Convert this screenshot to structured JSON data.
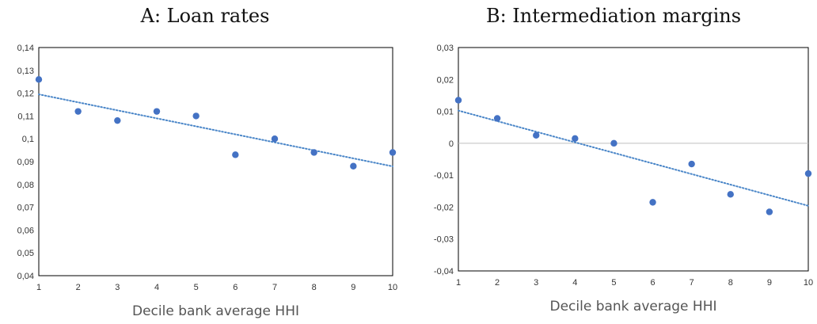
{
  "chart_data": [
    {
      "type": "scatter",
      "title": "A: Loan rates",
      "xlabel": "Decile bank average HHI",
      "ylabel": "",
      "x": [
        1,
        2,
        3,
        4,
        5,
        6,
        7,
        8,
        9,
        10
      ],
      "xticks": [
        "1",
        "2",
        "3",
        "4",
        "5",
        "6",
        "7",
        "8",
        "9",
        "10"
      ],
      "xlim": [
        1,
        10
      ],
      "ylim": [
        0.04,
        0.14
      ],
      "yticks": [
        0.04,
        0.05,
        0.06,
        0.07,
        0.08,
        0.09,
        0.1,
        0.11,
        0.12,
        0.13,
        0.14
      ],
      "ytick_labels": [
        "0,04",
        "0,05",
        "0,06",
        "0,07",
        "0,08",
        "0,09",
        "0,1",
        "0,11",
        "0,12",
        "0,13",
        "0,14"
      ],
      "series": [
        {
          "values": [
            0.126,
            0.112,
            0.108,
            0.112,
            0.11,
            0.093,
            0.1,
            0.094,
            0.088,
            0.094
          ],
          "color": "#4472c4"
        }
      ],
      "trendline": {
        "type": "linear",
        "style": "dotted",
        "color": "#4a86c8"
      },
      "zero_line": false,
      "grid": false,
      "legend": "none"
    },
    {
      "type": "scatter",
      "title": "B: Intermediation margins",
      "xlabel": "Decile bank average HHI",
      "ylabel": "",
      "x": [
        1,
        2,
        3,
        4,
        5,
        6,
        7,
        8,
        9,
        10
      ],
      "xticks": [
        "1",
        "2",
        "3",
        "4",
        "5",
        "6",
        "7",
        "8",
        "9",
        "10"
      ],
      "xlim": [
        1,
        10
      ],
      "ylim": [
        -0.04,
        0.03
      ],
      "yticks": [
        -0.04,
        -0.03,
        -0.02,
        -0.01,
        0,
        0.01,
        0.02,
        0.03
      ],
      "ytick_labels": [
        "-0,04",
        "-0,03",
        "-0,02",
        "-0,01",
        "0",
        "0,01",
        "0,02",
        "0,03"
      ],
      "series": [
        {
          "values": [
            0.0135,
            0.0078,
            0.0025,
            0.0015,
            0.0,
            -0.0185,
            -0.0065,
            -0.016,
            -0.0215,
            -0.0095
          ],
          "color": "#4472c4"
        }
      ],
      "trendline": {
        "type": "linear",
        "style": "dotted",
        "color": "#4a86c8"
      },
      "zero_line": true,
      "grid": false,
      "legend": "none"
    }
  ]
}
